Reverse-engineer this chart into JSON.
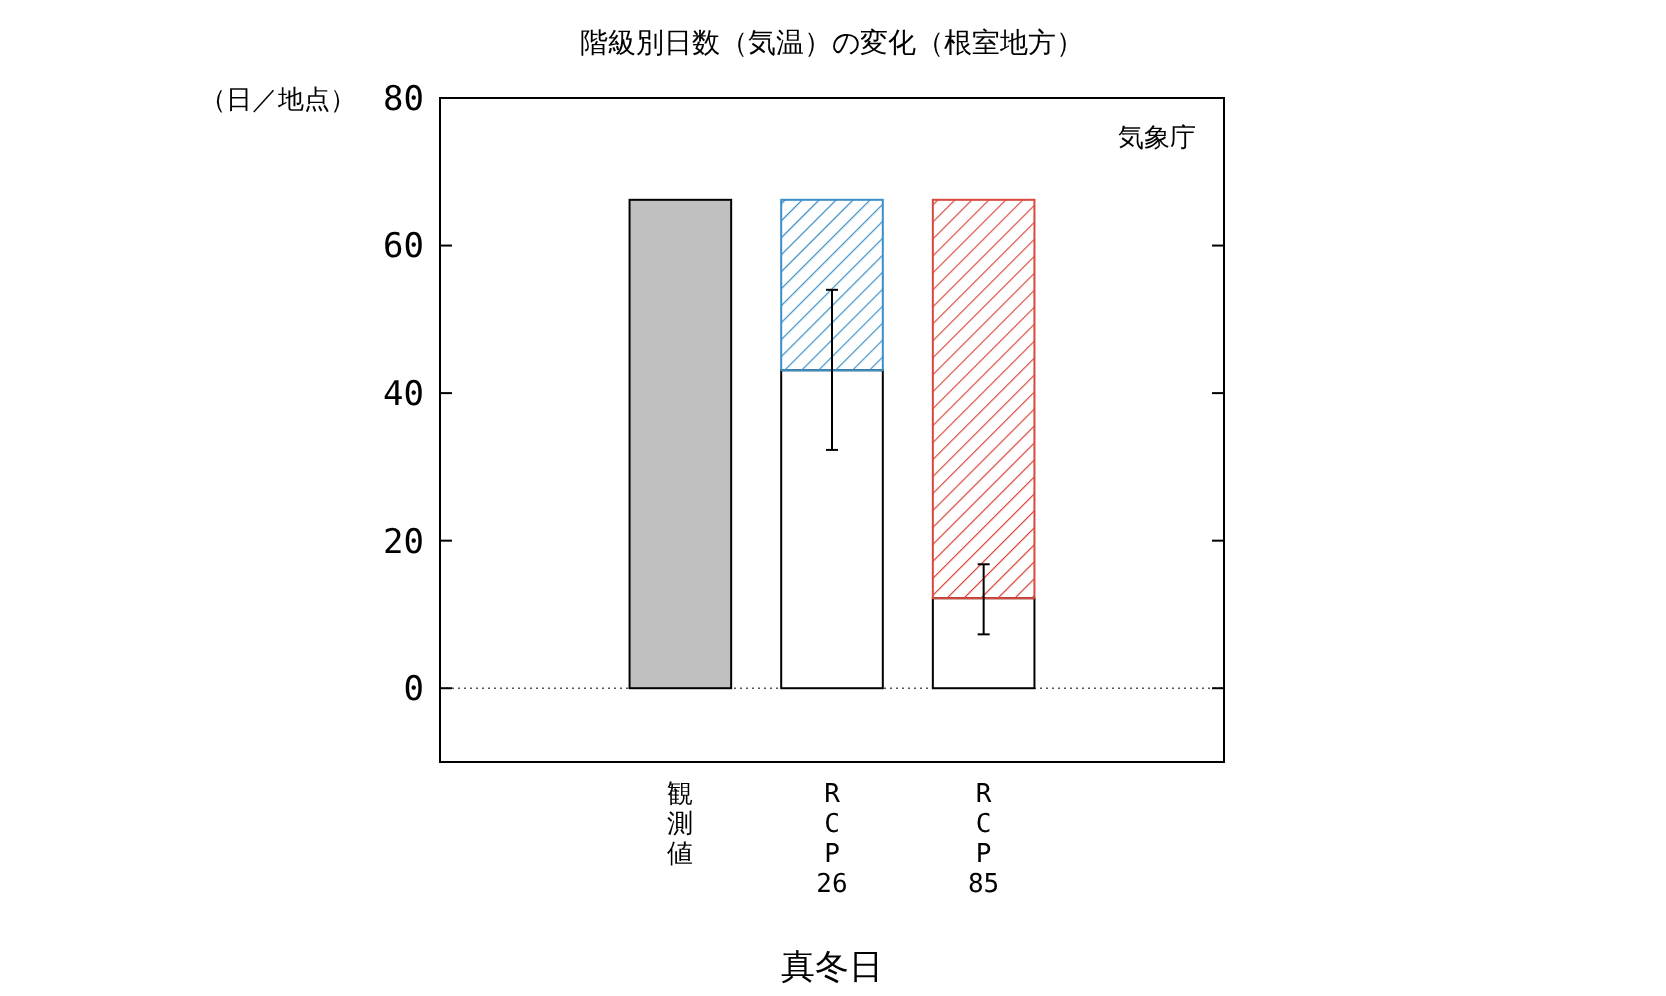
{
  "chart_data": {
    "type": "bar",
    "title": "階級別日数（気温）の変化（根室地方）",
    "xlabel": "真冬日",
    "ylabel": "（日／地点）",
    "categories": [
      null,
      "観測値",
      "RCP26",
      "RCP85",
      null
    ],
    "stacked": true,
    "series": [
      {
        "colors": [
          null,
          "#c0c0c0",
          "#ffffff",
          "#ffffff",
          null
        ],
        "values": [
          null,
          66.2,
          43.1,
          12.2,
          null
        ],
        "errors": [
          null,
          null,
          [
            32.3,
            54.0
          ],
          [
            7.3,
            16.8
          ],
          null
        ]
      },
      {
        "colors": [
          null,
          null,
          "#3a8fc8",
          "#d9483b",
          null
        ],
        "values": [
          null,
          null,
          23.1,
          54.0,
          null
        ]
      }
    ],
    "ylim": [
      -10,
      80
    ],
    "yticks": [
      0,
      20,
      40,
      60,
      80
    ],
    "grid": false,
    "ref_lines": [
      {
        "axis": "y",
        "value": 0,
        "line_style": "dotted",
        "color": "#555555"
      }
    ],
    "annotations": [
      "気象庁"
    ]
  }
}
